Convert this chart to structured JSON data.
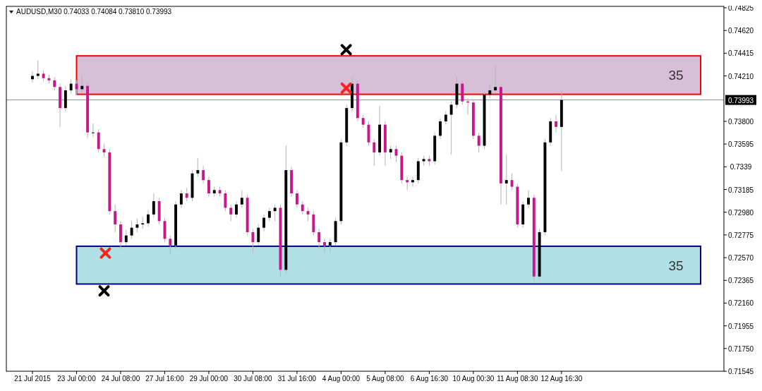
{
  "chart_data": {
    "type": "candlestick",
    "title": "AUDUSD,M30  0.74033 0.74084 0.73810 0.73993",
    "categories": [
      "21 Jul 2015",
      null,
      null,
      null,
      null,
      null,
      null,
      null,
      "23 Jul 00:00",
      null,
      null,
      null,
      null,
      null,
      null,
      null,
      "24 Jul 08:00",
      null,
      null,
      null,
      null,
      null,
      null,
      null,
      "27 Jul 16:00",
      null,
      null,
      null,
      null,
      null,
      null,
      null,
      "29 Jul 00:00",
      null,
      null,
      null,
      null,
      null,
      null,
      null,
      "30 Jul 08:00",
      null,
      null,
      null,
      null,
      null,
      null,
      null,
      "31 Jul 16:00",
      null,
      null,
      null,
      null,
      null,
      null,
      null,
      "4 Aug 00:00",
      null,
      null,
      null,
      null,
      null,
      null,
      null,
      "5 Aug 08:00",
      null,
      null,
      null,
      null,
      null,
      null,
      null,
      "6 Aug 16:30",
      null,
      null,
      null,
      null,
      null,
      null,
      null,
      "10 Aug 00:30",
      null,
      null,
      null,
      null,
      null,
      null,
      null,
      "11 Aug 08:30",
      null,
      null,
      null,
      null,
      null,
      null,
      null,
      "12 Aug 16:30",
      null,
      null,
      null,
      null,
      null,
      null,
      null,
      null,
      null,
      null,
      null,
      null,
      null,
      null,
      null,
      null,
      null,
      null,
      null,
      null,
      null,
      null,
      null,
      null,
      null,
      null,
      null,
      null,
      null,
      null,
      null
    ],
    "ohlc": [
      [
        0.7418,
        0.7425,
        0.7415,
        0.7421
      ],
      [
        0.7421,
        0.7435,
        0.7418,
        0.7423
      ],
      [
        0.7423,
        0.7426,
        0.7416,
        0.7419
      ],
      [
        0.7419,
        0.7422,
        0.7414,
        0.7417
      ],
      [
        0.7417,
        0.742,
        0.7408,
        0.7411
      ],
      [
        0.7411,
        0.7414,
        0.7375,
        0.7392
      ],
      [
        0.7392,
        0.7412,
        0.7389,
        0.7408
      ],
      [
        0.7408,
        0.7418,
        0.7405,
        0.7414
      ],
      [
        0.7414,
        0.7417,
        0.7404,
        0.7409
      ],
      [
        0.7409,
        0.7422,
        0.7406,
        0.7412
      ],
      [
        0.7412,
        0.7415,
        0.7365,
        0.737
      ],
      [
        0.737,
        0.7378,
        0.7366,
        0.737
      ],
      [
        0.737,
        0.7373,
        0.7352,
        0.7355
      ],
      [
        0.7355,
        0.736,
        0.7348,
        0.7352
      ],
      [
        0.7352,
        0.7355,
        0.7296,
        0.7299
      ],
      [
        0.7299,
        0.7305,
        0.728,
        0.7287
      ],
      [
        0.7287,
        0.729,
        0.7265,
        0.7271
      ],
      [
        0.7271,
        0.7282,
        0.7268,
        0.7277
      ],
      [
        0.7277,
        0.729,
        0.7274,
        0.7284
      ],
      [
        0.7284,
        0.7292,
        0.728,
        0.7287
      ],
      [
        0.7287,
        0.7294,
        0.7283,
        0.7288
      ],
      [
        0.7288,
        0.73,
        0.7285,
        0.7296
      ],
      [
        0.7296,
        0.7315,
        0.7293,
        0.7308
      ],
      [
        0.7308,
        0.7311,
        0.7287,
        0.729
      ],
      [
        0.729,
        0.7293,
        0.7271,
        0.7274
      ],
      [
        0.7274,
        0.7277,
        0.726,
        0.7268
      ],
      [
        0.7268,
        0.7308,
        0.7265,
        0.7305
      ],
      [
        0.7305,
        0.7318,
        0.7302,
        0.7315
      ],
      [
        0.7315,
        0.732,
        0.7308,
        0.7311
      ],
      [
        0.7311,
        0.7336,
        0.7308,
        0.7333
      ],
      [
        0.7333,
        0.7347,
        0.733,
        0.7336
      ],
      [
        0.7336,
        0.734,
        0.7324,
        0.7327
      ],
      [
        0.7327,
        0.733,
        0.7312,
        0.7315
      ],
      [
        0.7315,
        0.7321,
        0.7312,
        0.7318
      ],
      [
        0.7318,
        0.7321,
        0.7312,
        0.7315
      ],
      [
        0.7315,
        0.7318,
        0.7299,
        0.7302
      ],
      [
        0.7302,
        0.7305,
        0.729,
        0.7296
      ],
      [
        0.7296,
        0.7308,
        0.7293,
        0.7305
      ],
      [
        0.7305,
        0.7318,
        0.7302,
        0.7311
      ],
      [
        0.7311,
        0.7314,
        0.7277,
        0.728
      ],
      [
        0.728,
        0.7283,
        0.7262,
        0.7271
      ],
      [
        0.7271,
        0.7287,
        0.7268,
        0.7284
      ],
      [
        0.7284,
        0.7296,
        0.7281,
        0.7293
      ],
      [
        0.7293,
        0.7302,
        0.729,
        0.7299
      ],
      [
        0.7299,
        0.7305,
        0.729,
        0.7302
      ],
      [
        0.7302,
        0.7305,
        0.7239,
        0.7246
      ],
      [
        0.7246,
        0.7358,
        0.7243,
        0.7336
      ],
      [
        0.7336,
        0.7339,
        0.7312,
        0.7315
      ],
      [
        0.7315,
        0.7318,
        0.7302,
        0.7305
      ],
      [
        0.7305,
        0.7308,
        0.7296,
        0.7299
      ],
      [
        0.7299,
        0.7302,
        0.729,
        0.7296
      ],
      [
        0.7296,
        0.7299,
        0.7277,
        0.728
      ],
      [
        0.728,
        0.7283,
        0.7265,
        0.7271
      ],
      [
        0.7271,
        0.7274,
        0.7262,
        0.7268
      ],
      [
        0.7268,
        0.7274,
        0.7262,
        0.7271
      ],
      [
        0.7271,
        0.7293,
        0.7268,
        0.729
      ],
      [
        0.729,
        0.7364,
        0.7287,
        0.7361
      ],
      [
        0.7361,
        0.7395,
        0.7358,
        0.7392
      ],
      [
        0.7392,
        0.742,
        0.7389,
        0.7414
      ],
      [
        0.7414,
        0.7417,
        0.738,
        0.7383
      ],
      [
        0.7383,
        0.7386,
        0.7374,
        0.7377
      ],
      [
        0.7377,
        0.738,
        0.7358,
        0.7361
      ],
      [
        0.7361,
        0.7364,
        0.734,
        0.7352
      ],
      [
        0.7352,
        0.7394,
        0.7349,
        0.7377
      ],
      [
        0.7377,
        0.738,
        0.734,
        0.7352
      ],
      [
        0.7352,
        0.7358,
        0.7346,
        0.7355
      ],
      [
        0.7355,
        0.7358,
        0.7343,
        0.7349
      ],
      [
        0.7349,
        0.7352,
        0.7324,
        0.7327
      ],
      [
        0.7327,
        0.733,
        0.7318,
        0.7325
      ],
      [
        0.7325,
        0.733,
        0.7321,
        0.7327
      ],
      [
        0.7327,
        0.7347,
        0.7324,
        0.7344
      ],
      [
        0.7344,
        0.7349,
        0.734,
        0.7346
      ],
      [
        0.7346,
        0.7349,
        0.734,
        0.7344
      ],
      [
        0.7344,
        0.737,
        0.7341,
        0.7367
      ],
      [
        0.7367,
        0.7383,
        0.7364,
        0.738
      ],
      [
        0.738,
        0.7389,
        0.7377,
        0.7386
      ],
      [
        0.7386,
        0.7398,
        0.735,
        0.7395
      ],
      [
        0.7395,
        0.742,
        0.7392,
        0.7414
      ],
      [
        0.7414,
        0.7417,
        0.7395,
        0.7398
      ],
      [
        0.7398,
        0.7401,
        0.7386,
        0.7397
      ],
      [
        0.7397,
        0.74,
        0.7364,
        0.7367
      ],
      [
        0.7367,
        0.737,
        0.7352,
        0.7358
      ],
      [
        0.7358,
        0.7407,
        0.7355,
        0.7404
      ],
      [
        0.7404,
        0.7414,
        0.7401,
        0.7408
      ],
      [
        0.7408,
        0.7431,
        0.7405,
        0.7411
      ],
      [
        0.7411,
        0.7414,
        0.7305,
        0.7324
      ],
      [
        0.7324,
        0.735,
        0.7305,
        0.7327
      ],
      [
        0.7327,
        0.7333,
        0.7318,
        0.7321
      ],
      [
        0.7321,
        0.7324,
        0.7284,
        0.7287
      ],
      [
        0.7287,
        0.7308,
        0.7284,
        0.7305
      ],
      [
        0.7305,
        0.7318,
        0.7302,
        0.7311
      ],
      [
        0.7311,
        0.7314,
        0.7236,
        0.724
      ],
      [
        0.724,
        0.7283,
        0.7237,
        0.728
      ],
      [
        0.728,
        0.7364,
        0.7277,
        0.7361
      ],
      [
        0.7361,
        0.7383,
        0.7358,
        0.738
      ],
      [
        0.738,
        0.7386,
        0.737,
        0.7375
      ],
      [
        0.7375,
        0.7408,
        0.7335,
        0.73993
      ],
      null,
      null,
      null,
      null,
      null,
      null,
      null,
      null,
      null,
      null,
      null,
      null,
      null,
      null,
      null,
      null,
      null,
      null,
      null,
      null,
      null,
      null,
      null,
      null,
      null,
      null,
      null,
      null,
      null,
      null,
      null
    ],
    "ylim": [
      0.71545,
      0.74825
    ],
    "yticks": [
      0.74825,
      {
        "value": 0.7462,
        "label": "0.74620"
      },
      0.74415,
      {
        "value": 0.7421,
        "label": "0.74210"
      },
      {
        "value": 0.738,
        "label": "0.73800"
      },
      0.73595,
      0.7339,
      0.73185,
      {
        "value": 0.7298,
        "label": "0.72980"
      },
      0.72775,
      {
        "value": 0.7257,
        "label": "0.72570"
      },
      0.72365,
      {
        "value": 0.7216,
        "label": "0.72160"
      },
      0.71955,
      {
        "value": 0.7175,
        "label": "0.71750"
      },
      0.71545
    ],
    "ref_lines": [
      {
        "axis": "y",
        "value": 0.73993,
        "label": "0.73993",
        "color": "#8090a0"
      }
    ],
    "bands": [
      {
        "axis": "y",
        "from": 0.74044,
        "to": 0.74391,
        "label": "35",
        "color": "#d8bfd8"
      },
      {
        "axis": "y",
        "from": 0.72332,
        "to": 0.72673,
        "label": "35",
        "color": "#b0e0e6"
      }
    ]
  }
}
